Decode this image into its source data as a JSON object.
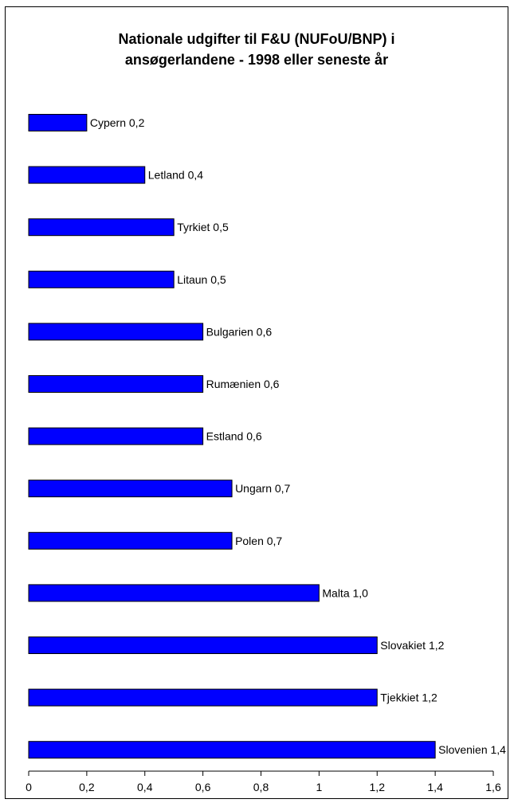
{
  "chart_data": {
    "type": "bar",
    "orientation": "horizontal",
    "title_lines": [
      "Nationale udgifter til F&U (NUFoU/BNP) i",
      "ansøgerlandene - 1998 eller seneste år"
    ],
    "categories": [
      "Cypern",
      "Letland",
      "Tyrkiet",
      "Litaun",
      "Bulgarien",
      "Rumænien",
      "Estland",
      "Ungarn",
      "Polen",
      "Malta",
      "Slovakiet",
      "Tjekkiet",
      "Slovenien"
    ],
    "values": [
      0.2,
      0.4,
      0.5,
      0.5,
      0.6,
      0.6,
      0.6,
      0.7,
      0.7,
      1.0,
      1.2,
      1.2,
      1.4
    ],
    "data_labels": [
      "Cypern 0,2",
      "Letland 0,4",
      "Tyrkiet 0,5",
      "Litaun 0,5",
      "Bulgarien 0,6",
      "Rumænien 0,6",
      "Estland 0,6",
      "Ungarn 0,7",
      "Polen 0,7",
      "Malta 1,0",
      "Slovakiet 1,2",
      "Tjekkiet 1,2",
      "Slovenien 1,4"
    ],
    "xlim": [
      0,
      1.6
    ],
    "x_ticks": [
      0,
      0.2,
      0.4,
      0.6,
      0.8,
      1,
      1.2,
      1.4,
      1.6
    ],
    "x_tick_labels": [
      "0",
      "0,2",
      "0,4",
      "0,6",
      "0,8",
      "1",
      "1,2",
      "1,4",
      "1,6"
    ],
    "xlabel": "",
    "ylabel": "",
    "grid": false,
    "legend": "none",
    "bar_color": "#0000FF",
    "bar_edge_color": "#000000"
  }
}
